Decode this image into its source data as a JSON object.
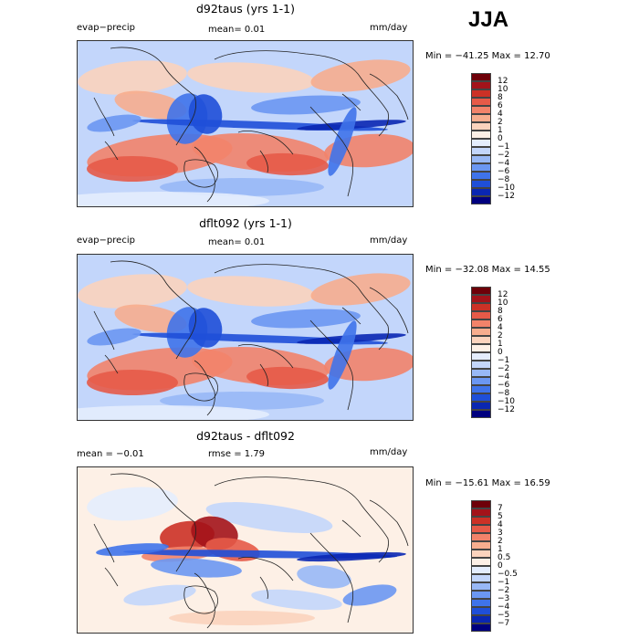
{
  "season": "JJA",
  "colors": {
    "diverging": [
      "#00007f",
      "#0a27b2",
      "#1f4fd8",
      "#3f73ea",
      "#6b97f2",
      "#98b8f6",
      "#c3d6fb",
      "#e4edfd",
      "#fdf0e6",
      "#fbd3bd",
      "#f7ad8e",
      "#f2836a",
      "#e65a48",
      "#cc3126",
      "#a3131a",
      "#6e0009"
    ]
  },
  "panels": [
    {
      "title": "d92taus (yrs 1-1)",
      "variable": "evap−precip",
      "stat_text": "mean=    0.01",
      "units": "mm/day",
      "min_label": "Min = −41.25 Max =   12.70",
      "levels": [
        "12",
        "10",
        "8",
        "6",
        "4",
        "2",
        "1",
        "0",
        "−1",
        "−2",
        "−4",
        "−6",
        "−8",
        "−10",
        "−12"
      ],
      "map_style": "mean"
    },
    {
      "title": "dflt092 (yrs 1-1)",
      "variable": "evap−precip",
      "stat_text": "mean=    0.01",
      "units": "mm/day",
      "min_label": "Min = −32.08 Max =   14.55",
      "levels": [
        "12",
        "10",
        "8",
        "6",
        "4",
        "2",
        "1",
        "0",
        "−1",
        "−2",
        "−4",
        "−6",
        "−8",
        "−10",
        "−12"
      ],
      "map_style": "mean"
    },
    {
      "title": "d92taus - dflt092",
      "stat_left": "mean =   −0.01",
      "stat_mid": "rmse =     1.79",
      "units": "mm/day",
      "min_label": "Min = −15.61 Max =   16.59",
      "levels": [
        "7",
        "5",
        "4",
        "3",
        "2",
        "1",
        "0.5",
        "0",
        "−0.5",
        "−1",
        "−2",
        "−3",
        "−4",
        "−5",
        "−7"
      ],
      "map_style": "diff"
    }
  ]
}
